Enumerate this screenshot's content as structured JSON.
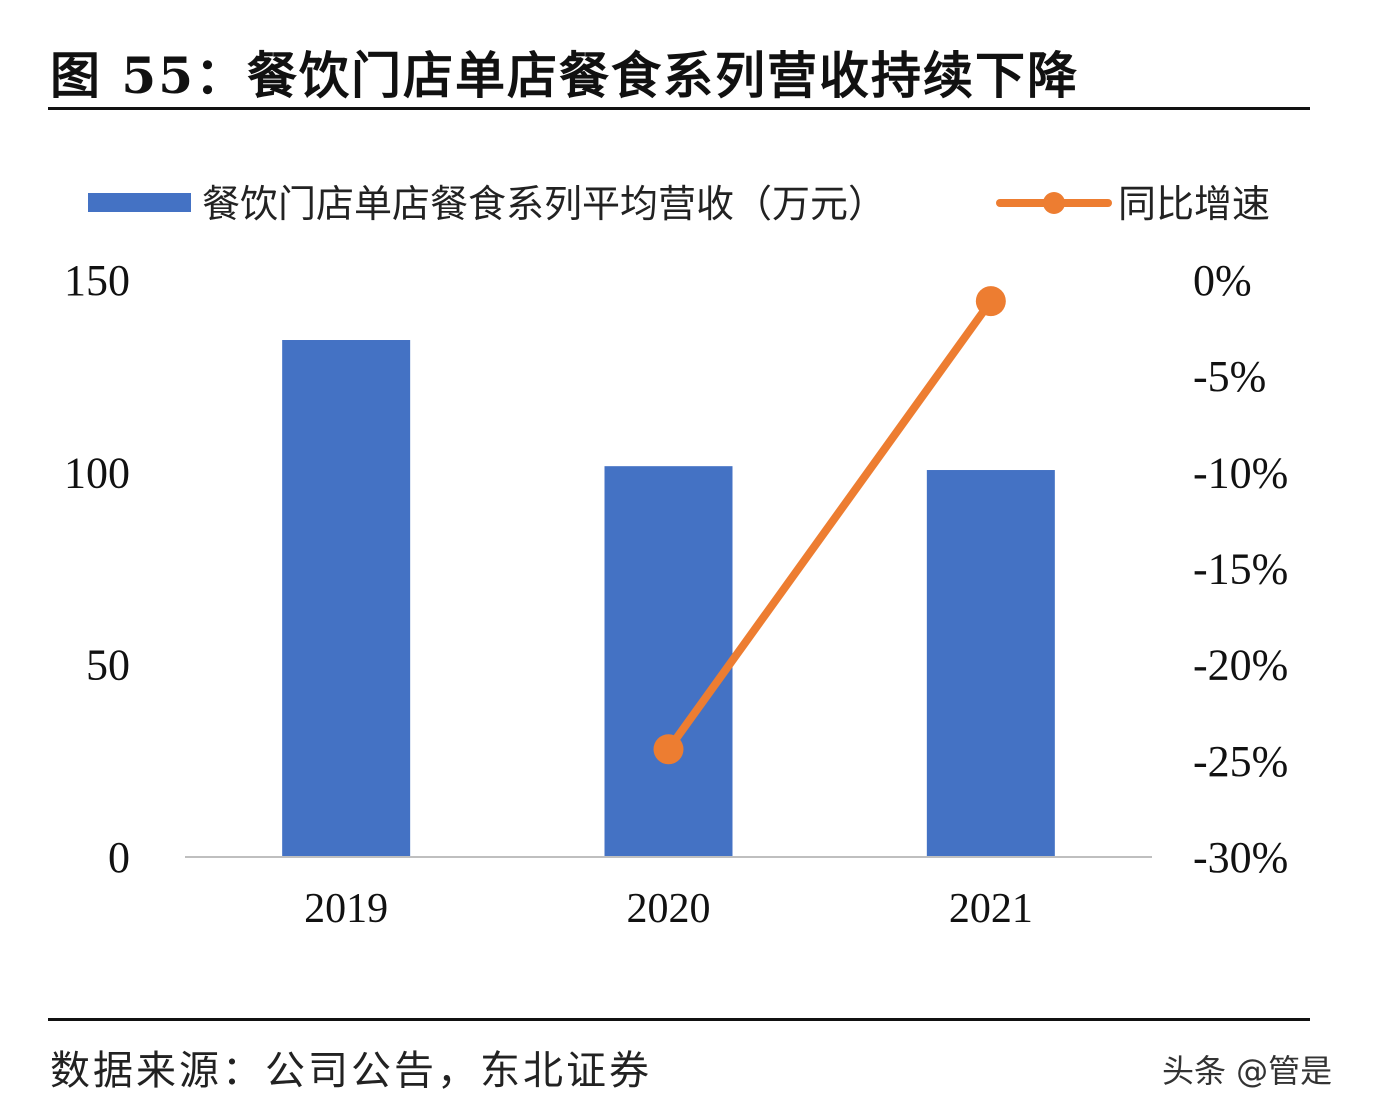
{
  "header": {
    "title": "图  55：餐饮门店单店餐食系列营收持续下降"
  },
  "footer": {
    "source": "数据来源：公司公告，东北证券",
    "watermark": "头条 @管是"
  },
  "chart_data": {
    "type": "bar+line",
    "title": "图  55：餐饮门店单店餐食系列营收持续下降",
    "categories": [
      "2019",
      "2020",
      "2021"
    ],
    "series": [
      {
        "name": "餐饮门店单店餐食系列平均营收（万元）",
        "type": "bar",
        "axis": "left",
        "color": "#4472C4",
        "values": [
          134.4,
          101.6,
          100.6
        ]
      },
      {
        "name": "同比增速",
        "type": "line",
        "axis": "right",
        "color": "#ED7D31",
        "values": [
          null,
          -24.4,
          -1.1
        ]
      }
    ],
    "y_left": {
      "range": [
        0,
        150
      ],
      "ticks": [
        "0",
        "50",
        "100",
        "150"
      ],
      "tick_values": [
        0,
        50,
        100,
        150
      ]
    },
    "y_right": {
      "range": [
        -30,
        0
      ],
      "ticks": [
        "-30%",
        "-25%",
        "-20%",
        "-15%",
        "-10%",
        "-5%",
        "0%"
      ],
      "tick_values": [
        -30,
        -25,
        -20,
        -15,
        -10,
        -5,
        0
      ]
    },
    "legend": "top",
    "grid": false
  }
}
